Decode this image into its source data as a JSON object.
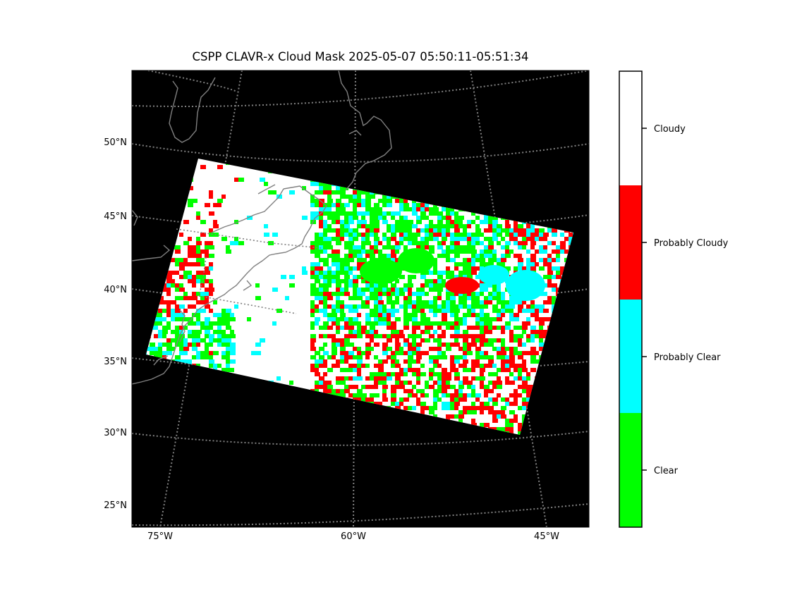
{
  "title": "CSPP CLAVR-x Cloud Mask 2025-05-07 05:50:11-05:51:34",
  "map": {
    "background": "#000000",
    "gridline_color": "#808080",
    "coastline_color": "#808080",
    "lat_labels": [
      "50°N",
      "45°N",
      "40°N",
      "35°N",
      "30°N",
      "25°N"
    ],
    "lon_labels": [
      "75°W",
      "60°W",
      "45°W"
    ]
  },
  "colorbar": {
    "categories": [
      {
        "label": "Cloudy",
        "color": "#ffffff"
      },
      {
        "label": "Probably Cloudy",
        "color": "#ff0000"
      },
      {
        "label": "Probably Clear",
        "color": "#00ffff"
      },
      {
        "label": "Clear",
        "color": "#00ff00"
      }
    ]
  }
}
